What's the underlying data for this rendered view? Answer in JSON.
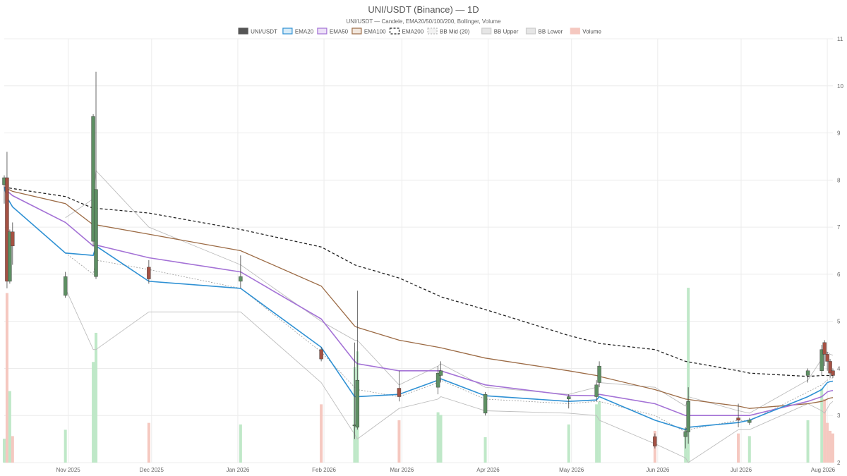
{
  "chart_data": {
    "type": "candlestick",
    "title": "UNI/USDT (Binance) — 1D",
    "subtitle": "UNI/USDT — Candele, EMA20/50/100/200, Bollinger, Volume",
    "legend": [
      "UNI/USDT",
      "EMA20",
      "EMA50",
      "EMA100",
      "EMA200",
      "BB Mid (20)",
      "BB Upper",
      "BB Lower",
      "Volume"
    ],
    "legend_placement": "top-center",
    "x_tick_labels": [
      "Nov 2025",
      "Dec 2025",
      "Jan 2026",
      "Feb 2026",
      "Mar 2026",
      "Apr 2026",
      "May 2026",
      "Jun 2026",
      "Jul 2026",
      "Aug 2026"
    ],
    "y_axis": {
      "position": "right",
      "ylim": [
        2,
        11
      ],
      "ticks": [
        2,
        3,
        4,
        5,
        6,
        7,
        8,
        9,
        10,
        11
      ]
    },
    "grid": true,
    "colors": {
      "up": "#5e8f63",
      "down": "#a55143",
      "ema20": "#2f91d4",
      "ema50": "#a472d6",
      "ema100": "#9c6b45",
      "ema200": "#222222",
      "bb": "#bdbdbd",
      "vol_up": "#bfe8c8",
      "vol_down": "#f5c8c0"
    },
    "dates": [
      "2025-10-09",
      "2025-10-10",
      "2025-10-11",
      "2025-10-12",
      "2025-10-31",
      "2025-11-10",
      "2025-11-11",
      "2025-11-30",
      "2026-01-02",
      "2026-01-31",
      "2026-02-12",
      "2026-02-13",
      "2026-02-28",
      "2026-03-14",
      "2026-03-15",
      "2026-03-31",
      "2026-04-30",
      "2026-05-10",
      "2026-05-11",
      "2026-05-31",
      "2026-06-11",
      "2026-06-12",
      "2026-06-30",
      "2026-07-04",
      "2026-07-25",
      "2026-07-30",
      "2026-07-31",
      "2026-08-01",
      "2026-08-02",
      "2026-08-03"
    ],
    "open": [
      7.9,
      8.05,
      5.85,
      6.9,
      5.55,
      6.7,
      5.95,
      6.15,
      5.85,
      4.4,
      2.78,
      2.75,
      3.58,
      3.6,
      3.85,
      3.05,
      3.35,
      3.4,
      3.7,
      2.55,
      2.55,
      2.65,
      2.95,
      2.85,
      3.85,
      3.95,
      4.55,
      4.3,
      4.15,
      3.95
    ],
    "high": [
      8.1,
      8.6,
      6.95,
      7.1,
      6.05,
      9.4,
      10.3,
      6.3,
      6.4,
      4.45,
      4.55,
      5.65,
      3.95,
      4.05,
      4.15,
      3.5,
      3.45,
      3.75,
      4.15,
      2.62,
      2.75,
      3.6,
      3.25,
      2.95,
      4.0,
      4.5,
      4.6,
      4.35,
      4.2,
      4.0
    ],
    "low": [
      7.5,
      5.7,
      5.8,
      6.2,
      5.5,
      6.6,
      5.9,
      5.8,
      5.7,
      4.15,
      2.5,
      2.7,
      3.3,
      3.45,
      3.7,
      3.0,
      3.15,
      3.3,
      3.6,
      2.3,
      2.3,
      2.4,
      2.75,
      2.8,
      3.7,
      3.85,
      4.05,
      3.95,
      3.8,
      3.8
    ],
    "close": [
      8.05,
      5.85,
      6.9,
      6.6,
      5.95,
      9.35,
      7.8,
      5.9,
      5.95,
      4.2,
      2.8,
      3.75,
      3.4,
      3.9,
      3.95,
      3.45,
      3.4,
      3.65,
      4.05,
      2.35,
      2.65,
      3.3,
      2.9,
      2.9,
      3.95,
      4.4,
      4.3,
      4.15,
      3.9,
      3.85
    ],
    "volume": [
      0.45,
      3.2,
      1.35,
      0.5,
      0.62,
      1.9,
      2.45,
      0.75,
      0.72,
      1.1,
      1.8,
      2.1,
      0.8,
      0.95,
      0.9,
      0.48,
      0.72,
      1.1,
      1.15,
      0.6,
      0.65,
      3.3,
      0.55,
      0.5,
      0.8,
      1.4,
      1.2,
      0.75,
      0.6,
      0.55
    ],
    "ema20": [
      7.85,
      7.63,
      7.53,
      7.43,
      6.45,
      6.4,
      6.6,
      5.85,
      5.7,
      4.45,
      3.4,
      3.4,
      3.45,
      3.75,
      3.78,
      3.42,
      3.3,
      3.33,
      3.4,
      2.9,
      2.7,
      2.75,
      2.85,
      2.9,
      3.4,
      3.55,
      3.63,
      3.7,
      3.72,
      3.73
    ],
    "ema50": [
      7.85,
      7.77,
      7.72,
      7.67,
      7.1,
      6.6,
      6.62,
      6.35,
      6.05,
      5.05,
      4.15,
      4.1,
      3.95,
      3.95,
      3.95,
      3.65,
      3.43,
      3.42,
      3.45,
      3.25,
      3.0,
      3.0,
      3.0,
      3.0,
      3.3,
      3.4,
      3.45,
      3.5,
      3.52,
      3.53
    ],
    "ema100": [
      7.85,
      7.81,
      7.79,
      7.76,
      7.5,
      7.05,
      7.05,
      6.85,
      6.5,
      5.75,
      4.9,
      4.87,
      4.6,
      4.45,
      4.44,
      4.22,
      3.95,
      3.85,
      3.83,
      3.55,
      3.35,
      3.34,
      3.2,
      3.15,
      3.25,
      3.3,
      3.32,
      3.35,
      3.37,
      3.38
    ],
    "ema200": [
      7.85,
      7.84,
      7.83,
      7.82,
      7.65,
      7.4,
      7.4,
      7.3,
      6.95,
      6.58,
      6.2,
      6.18,
      5.92,
      5.55,
      5.52,
      5.25,
      4.7,
      4.55,
      4.53,
      4.4,
      4.15,
      4.14,
      3.95,
      3.9,
      3.83,
      3.85,
      3.85,
      3.85,
      3.85,
      3.85
    ],
    "bb_mid": [
      null,
      null,
      null,
      null,
      6.45,
      6.0,
      6.3,
      6.1,
      5.7,
      4.35,
      3.6,
      3.55,
      3.4,
      3.7,
      3.75,
      3.35,
      3.25,
      3.3,
      3.3,
      3.0,
      2.65,
      2.7,
      2.9,
      2.88,
      3.5,
      3.65,
      3.7,
      3.75,
      3.78,
      3.8
    ],
    "bb_upper": [
      null,
      null,
      null,
      null,
      7.2,
      7.6,
      8.2,
      7.0,
      6.2,
      5.0,
      4.6,
      4.6,
      3.65,
      4.05,
      4.1,
      3.6,
      3.45,
      3.6,
      3.7,
      3.6,
      3.2,
      3.4,
      3.1,
      3.05,
      3.75,
      4.2,
      4.35,
      4.35,
      4.3,
      4.28
    ],
    "bb_lower": [
      null,
      null,
      null,
      null,
      5.7,
      4.4,
      4.4,
      5.2,
      5.2,
      3.7,
      2.6,
      2.5,
      3.15,
      3.35,
      3.4,
      3.1,
      3.05,
      3.0,
      2.9,
      2.4,
      2.1,
      2.0,
      2.7,
      2.7,
      3.25,
      3.1,
      3.05,
      3.15,
      3.25,
      3.3
    ]
  }
}
